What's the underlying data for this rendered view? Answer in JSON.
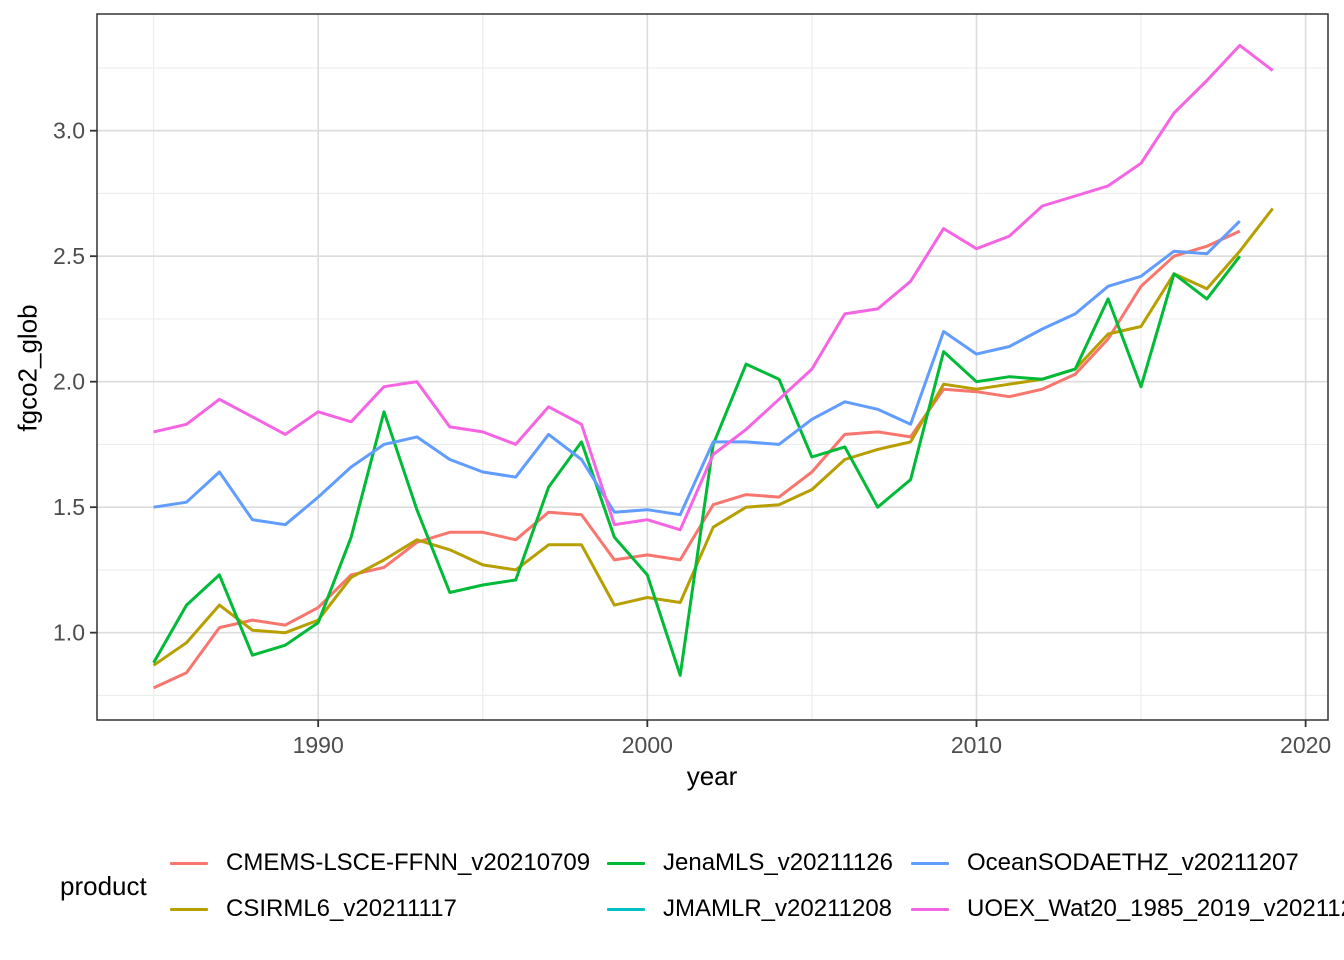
{
  "figure": {
    "x_axis_title": "year",
    "y_axis_title": "fgco2_glob"
  },
  "legend": {
    "title": "product",
    "entries": [
      {
        "label": "CMEMS-LSCE-FFNN_v20210709",
        "color": "#F8766D"
      },
      {
        "label": "CSIRML6_v20211117",
        "color": "#B79F00"
      },
      {
        "label": "JenaMLS_v20211126",
        "color": "#00BA38"
      },
      {
        "label": "JMAMLR_v20211208",
        "color": "#00BFC4"
      },
      {
        "label": "OceanSODAETHZ_v20211207",
        "color": "#619CFF"
      },
      {
        "label": "UOEX_Wat20_1985_2019_v202112",
        "color": "#F564E3"
      }
    ]
  },
  "chart_data": {
    "type": "line",
    "title": "",
    "xlabel": "year",
    "ylabel": "fgco2_glob",
    "legend_title": "product",
    "legend_position": "bottom",
    "grid": true,
    "x_range": [
      1983.28,
      2020.68
    ],
    "y_range": [
      0.652,
      3.465
    ],
    "x_ticks": {
      "values": [
        1990,
        2000,
        2010,
        2020
      ],
      "labels": [
        "1990",
        "2000",
        "2010",
        "2020"
      ]
    },
    "x_minor_ticks": [
      1985,
      1995,
      2005,
      2015
    ],
    "y_ticks": {
      "values": [
        1.0,
        1.5,
        2.0,
        2.5,
        3.0
      ],
      "labels": [
        "1.0",
        "1.5",
        "2.0",
        "2.5",
        "3.0"
      ]
    },
    "y_minor_ticks": [
      0.75,
      1.25,
      1.75,
      2.25,
      2.75,
      3.25
    ],
    "x": [
      1985,
      1986,
      1987,
      1988,
      1989,
      1990,
      1991,
      1992,
      1993,
      1994,
      1995,
      1996,
      1997,
      1998,
      1999,
      2000,
      2001,
      2002,
      2003,
      2004,
      2005,
      2006,
      2007,
      2008,
      2009,
      2010,
      2011,
      2012,
      2013,
      2014,
      2015,
      2016,
      2017,
      2018,
      2019
    ],
    "series": [
      {
        "name": "CMEMS-LSCE-FFNN_v20210709",
        "color": "#F8766D",
        "values": [
          0.78,
          0.84,
          1.02,
          1.05,
          1.03,
          1.1,
          1.23,
          1.26,
          1.36,
          1.4,
          1.4,
          1.37,
          1.48,
          1.47,
          1.29,
          1.31,
          1.29,
          1.51,
          1.55,
          1.54,
          1.64,
          1.79,
          1.8,
          1.78,
          1.97,
          1.96,
          1.94,
          1.97,
          2.03,
          2.17,
          2.38,
          2.5,
          2.54,
          2.6,
          null
        ]
      },
      {
        "name": "CSIRML6_v20211117",
        "color": "#B79F00",
        "values": [
          0.87,
          0.96,
          1.11,
          1.01,
          1.0,
          1.05,
          1.22,
          1.29,
          1.37,
          1.33,
          1.27,
          1.25,
          1.35,
          1.35,
          1.11,
          1.14,
          1.12,
          1.42,
          1.5,
          1.51,
          1.57,
          1.69,
          1.73,
          1.76,
          1.99,
          1.97,
          1.99,
          2.01,
          2.05,
          2.19,
          2.22,
          2.43,
          2.37,
          2.52,
          2.69
        ]
      },
      {
        "name": "JenaMLS_v20211126",
        "color": "#00BA38",
        "values": [
          0.88,
          1.11,
          1.23,
          0.91,
          0.95,
          1.04,
          1.38,
          1.88,
          1.49,
          1.16,
          1.19,
          1.21,
          1.58,
          1.76,
          1.38,
          1.23,
          0.83,
          1.75,
          2.07,
          2.01,
          1.7,
          1.74,
          1.5,
          1.61,
          2.12,
          2.0,
          2.02,
          2.01,
          2.05,
          2.33,
          1.98,
          2.43,
          2.33,
          2.5,
          null
        ]
      },
      {
        "name": "JMAMLR_v20211208",
        "color": "#00BFC4",
        "values": [
          null,
          null,
          null,
          null,
          null,
          null,
          null,
          null,
          null,
          null,
          null,
          null,
          null,
          null,
          null,
          null,
          null,
          null,
          null,
          null,
          null,
          null,
          null,
          null,
          null,
          null,
          null,
          null,
          null,
          null,
          null,
          null,
          null,
          null,
          null
        ]
      },
      {
        "name": "OceanSODAETHZ_v20211207",
        "color": "#619CFF",
        "values": [
          1.5,
          1.52,
          1.64,
          1.45,
          1.43,
          1.54,
          1.66,
          1.75,
          1.78,
          1.69,
          1.64,
          1.62,
          1.79,
          1.69,
          1.48,
          1.49,
          1.47,
          1.76,
          1.76,
          1.75,
          1.85,
          1.92,
          1.89,
          1.83,
          2.2,
          2.11,
          2.14,
          2.21,
          2.27,
          2.38,
          2.42,
          2.52,
          2.51,
          2.64,
          null
        ]
      },
      {
        "name": "UOEX_Wat20_1985_2019_v202112",
        "color": "#F564E3",
        "values": [
          1.8,
          1.83,
          1.93,
          1.86,
          1.79,
          1.88,
          1.84,
          1.98,
          2.0,
          1.82,
          1.8,
          1.75,
          1.9,
          1.83,
          1.43,
          1.45,
          1.41,
          1.71,
          1.81,
          1.93,
          2.05,
          2.27,
          2.29,
          2.4,
          2.61,
          2.53,
          2.58,
          2.7,
          2.74,
          2.78,
          2.87,
          3.07,
          3.2,
          3.34,
          3.24
        ]
      }
    ]
  }
}
